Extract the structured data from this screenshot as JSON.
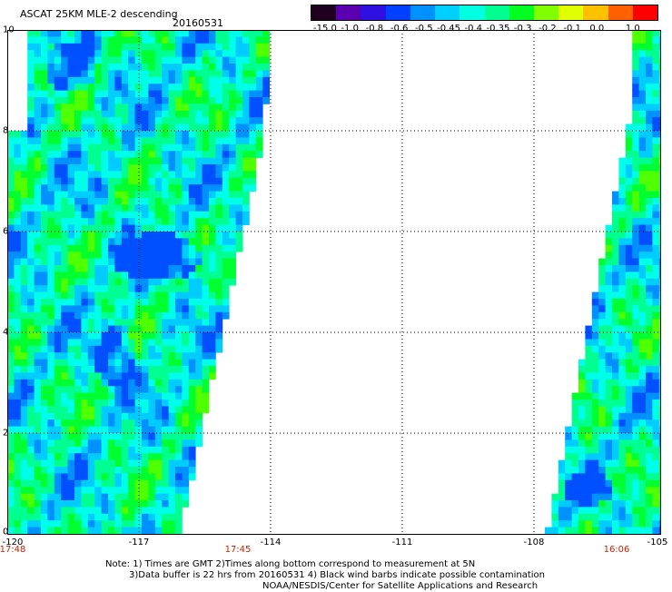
{
  "header": {
    "title": "ASCAT 25KM MLE-2 descending",
    "date": "20160531"
  },
  "colorbar": {
    "labels": [
      "-15.0",
      "-1.0",
      "-0.8",
      "-0.6",
      "-0.5",
      "-0.45",
      "-0.4",
      "-0.35",
      "-0.3",
      "-0.2",
      "-0.1",
      "0.0",
      "1.0"
    ],
    "colors": [
      "#200020",
      "#5a00b0",
      "#3010e0",
      "#0040ff",
      "#0090ff",
      "#00d0ff",
      "#00ffe0",
      "#00ff90",
      "#00ff20",
      "#80ff00",
      "#e0ff00",
      "#ffc000",
      "#ff6000",
      "#ff0000"
    ]
  },
  "map": {
    "x_ticks": [
      "-120",
      "-117",
      "-114",
      "-111",
      "-108",
      "-105"
    ],
    "y_ticks": [
      "10",
      "8",
      "6",
      "4",
      "2",
      "0"
    ],
    "time_labels": [
      "17:48",
      "17:45",
      "16:06"
    ]
  },
  "notes": [
    "Note: 1) Times are GMT 2)Times along bottom correspond to measurement at 5N",
    "3)Data buffer is 22 hrs from 20160531 4) Black wind barbs indicate possible contamination",
    "NOAA/NESDIS/Center for Satellite Applications and Research"
  ]
}
